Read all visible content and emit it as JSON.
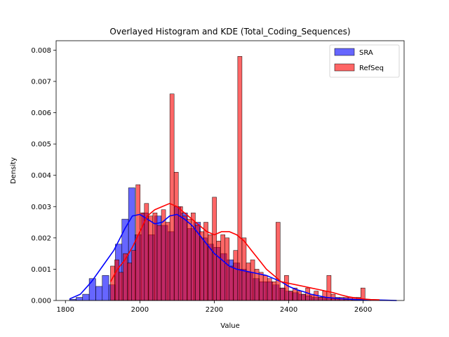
{
  "chart_data": {
    "type": "bar",
    "title": "Overlayed Histogram and KDE (Total_Coding_Sequences)",
    "xlabel": "Value",
    "ylabel": "Density",
    "xlim": [
      1775,
      2710
    ],
    "ylim": [
      0,
      0.0083
    ],
    "xticks": [
      1800,
      2000,
      2200,
      2400,
      2600
    ],
    "yticks": [
      0.0,
      0.001,
      0.002,
      0.003,
      0.004,
      0.005,
      0.006,
      0.007,
      0.008
    ],
    "ytick_labels": [
      "0.000",
      "0.001",
      "0.002",
      "0.003",
      "0.004",
      "0.005",
      "0.006",
      "0.007",
      "0.008"
    ],
    "legend_position": "top-right",
    "grid": false,
    "series": [
      {
        "name": "SRA",
        "color": "#0000ff",
        "alpha": 0.6,
        "bin_edges_start": 1811,
        "bin_width": 17.6,
        "values": [
          4e-05,
          0.0001,
          0.0002,
          0.0007,
          0.00045,
          0.0008,
          0.0005,
          0.0018,
          0.0026,
          0.0036,
          0.0021,
          0.0028,
          0.0021,
          0.0027,
          0.0024,
          0.0022,
          0.003,
          0.0028,
          0.0023,
          0.0025,
          0.002,
          0.0018,
          0.0017,
          0.0015,
          0.0013,
          0.0012,
          0.001,
          0.0009,
          0.0007,
          0.0006,
          0.0006,
          0.0005,
          0.0004,
          0.0003,
          0.00025,
          0.0002,
          0.00015,
          0.0001,
          0.0001,
          8e-05,
          6e-05,
          5e-05,
          3e-05,
          2e-05,
          1e-05,
          1e-05
        ],
        "kde": {
          "x": [
            1811,
            1840,
            1870,
            1900,
            1930,
            1960,
            1980,
            2000,
            2020,
            2040,
            2060,
            2080,
            2100,
            2120,
            2140,
            2160,
            2180,
            2200,
            2220,
            2240,
            2260,
            2280,
            2300,
            2320,
            2340,
            2360,
            2380,
            2400,
            2420,
            2440,
            2460,
            2480,
            2500,
            2540,
            2580,
            2620,
            2660,
            2690
          ],
          "y": [
            5e-05,
            0.0002,
            0.0006,
            0.0011,
            0.0016,
            0.0023,
            0.0027,
            0.00275,
            0.0026,
            0.00245,
            0.0025,
            0.0027,
            0.00275,
            0.0026,
            0.0024,
            0.0021,
            0.0018,
            0.0015,
            0.0013,
            0.0011,
            0.001,
            0.00095,
            0.0009,
            0.00085,
            0.0008,
            0.0007,
            0.0006,
            0.00045,
            0.00035,
            0.00028,
            0.0002,
            0.00015,
            0.0001,
            6e-05,
            3e-05,
            2e-05,
            1e-05,
            0.0
          ]
        }
      },
      {
        "name": "RefSeq",
        "color": "#ff0000",
        "alpha": 0.6,
        "bin_edges_start": 1921,
        "bin_width": 11.4,
        "values": [
          0.0011,
          0.0013,
          0.0009,
          0.0015,
          0.0012,
          0.0016,
          0.0037,
          0.0028,
          0.0031,
          0.0027,
          0.0028,
          0.0024,
          0.0029,
          0.0025,
          0.0066,
          0.0041,
          0.003,
          0.0027,
          0.0026,
          0.0028,
          0.0024,
          0.0022,
          0.0025,
          0.0021,
          0.0033,
          0.0019,
          0.0021,
          0.002,
          0.0011,
          0.0016,
          0.0078,
          0.002,
          0.0012,
          0.0013,
          0.001,
          0.0009,
          0.0008,
          0.0007,
          0.0006,
          0.0025,
          0.0004,
          0.0008,
          0.0003,
          0.0004,
          0.0003,
          0.0002,
          0.0004,
          0.0002,
          0.0003,
          0.0001,
          0.0003,
          0.0008,
          0.0002,
          0.0001,
          0.0001,
          0.0001,
          0.0001,
          0.0001,
          0.0001,
          0.0004
        ],
        "kde": {
          "x": [
            1921,
            1940,
            1960,
            1980,
            2000,
            2020,
            2040,
            2060,
            2080,
            2100,
            2120,
            2140,
            2160,
            2180,
            2200,
            2220,
            2240,
            2260,
            2280,
            2300,
            2320,
            2340,
            2360,
            2380,
            2400,
            2420,
            2440,
            2460,
            2480,
            2500,
            2520,
            2540,
            2560,
            2580,
            2600,
            2620,
            2644
          ],
          "y": [
            0.0006,
            0.001,
            0.0013,
            0.0017,
            0.0022,
            0.0027,
            0.0029,
            0.003,
            0.0031,
            0.003,
            0.0028,
            0.0026,
            0.0024,
            0.0022,
            0.0021,
            0.0022,
            0.0022,
            0.0021,
            0.0019,
            0.0016,
            0.0013,
            0.001,
            0.0008,
            0.0006,
            0.00055,
            0.0005,
            0.00045,
            0.0004,
            0.00035,
            0.0003,
            0.00025,
            0.00018,
            0.00012,
            8e-05,
            5e-05,
            3e-05,
            2e-05
          ]
        }
      }
    ]
  }
}
